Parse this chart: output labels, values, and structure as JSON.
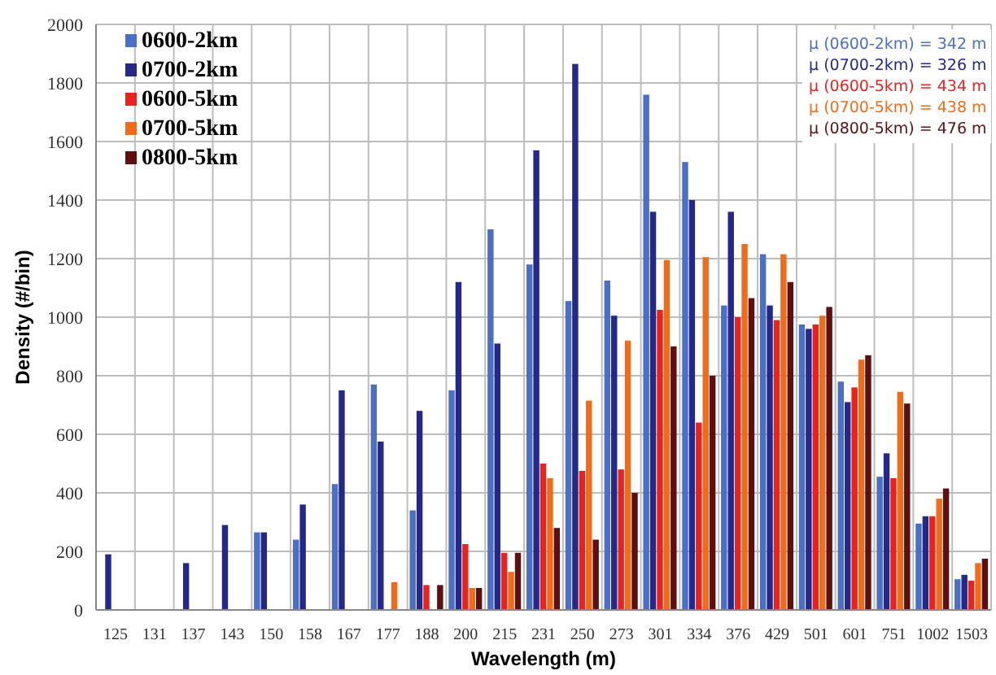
{
  "chart_data": {
    "type": "bar",
    "xlabel": "Wavelength (m)",
    "ylabel": "Density (#/bin)",
    "categories": [
      "125",
      "131",
      "137",
      "143",
      "150",
      "158",
      "167",
      "177",
      "188",
      "200",
      "215",
      "231",
      "250",
      "273",
      "301",
      "334",
      "376",
      "429",
      "501",
      "601",
      "751",
      "1002",
      "1503"
    ],
    "series": [
      {
        "name": "0600-2km",
        "color": "#4a6fc4",
        "values": [
          null,
          null,
          null,
          null,
          265,
          240,
          430,
          770,
          340,
          750,
          1300,
          1180,
          1055,
          1125,
          1760,
          1530,
          1040,
          1215,
          975,
          780,
          455,
          295,
          105
        ]
      },
      {
        "name": "0700-2km",
        "color": "#23288a",
        "values": [
          190,
          null,
          160,
          290,
          265,
          360,
          750,
          575,
          680,
          1120,
          910,
          1570,
          1865,
          1005,
          1360,
          1400,
          1360,
          1040,
          960,
          710,
          535,
          320,
          120
        ]
      },
      {
        "name": "0600-5km",
        "color": "#e8231f",
        "values": [
          null,
          null,
          null,
          null,
          null,
          null,
          null,
          null,
          85,
          225,
          195,
          500,
          475,
          480,
          1025,
          640,
          1000,
          990,
          975,
          760,
          450,
          320,
          100
        ]
      },
      {
        "name": "0700-5km",
        "color": "#ef6c1a",
        "values": [
          null,
          null,
          null,
          null,
          null,
          null,
          null,
          95,
          null,
          75,
          130,
          450,
          715,
          920,
          1195,
          1205,
          1250,
          1215,
          1005,
          855,
          745,
          380,
          160
        ]
      },
      {
        "name": "0800-5km",
        "color": "#5e0f0f",
        "values": [
          null,
          null,
          null,
          null,
          null,
          null,
          null,
          null,
          85,
          75,
          195,
          280,
          240,
          400,
          900,
          800,
          1065,
          1120,
          1035,
          870,
          705,
          415,
          175
        ]
      }
    ],
    "ylim": [
      0,
      2000
    ],
    "yticks": [
      0,
      200,
      400,
      600,
      800,
      1000,
      1200,
      1400,
      1600,
      1800,
      2000
    ],
    "grid": true,
    "legend": "top left",
    "annotations": [
      "μ (0600-2km) = 342 m",
      "μ (0700-2km) = 326 m",
      "μ (0600-5km) = 434 m",
      "μ (0700-5km) = 438 m",
      "μ (0800-5km) = 476 m"
    ]
  }
}
